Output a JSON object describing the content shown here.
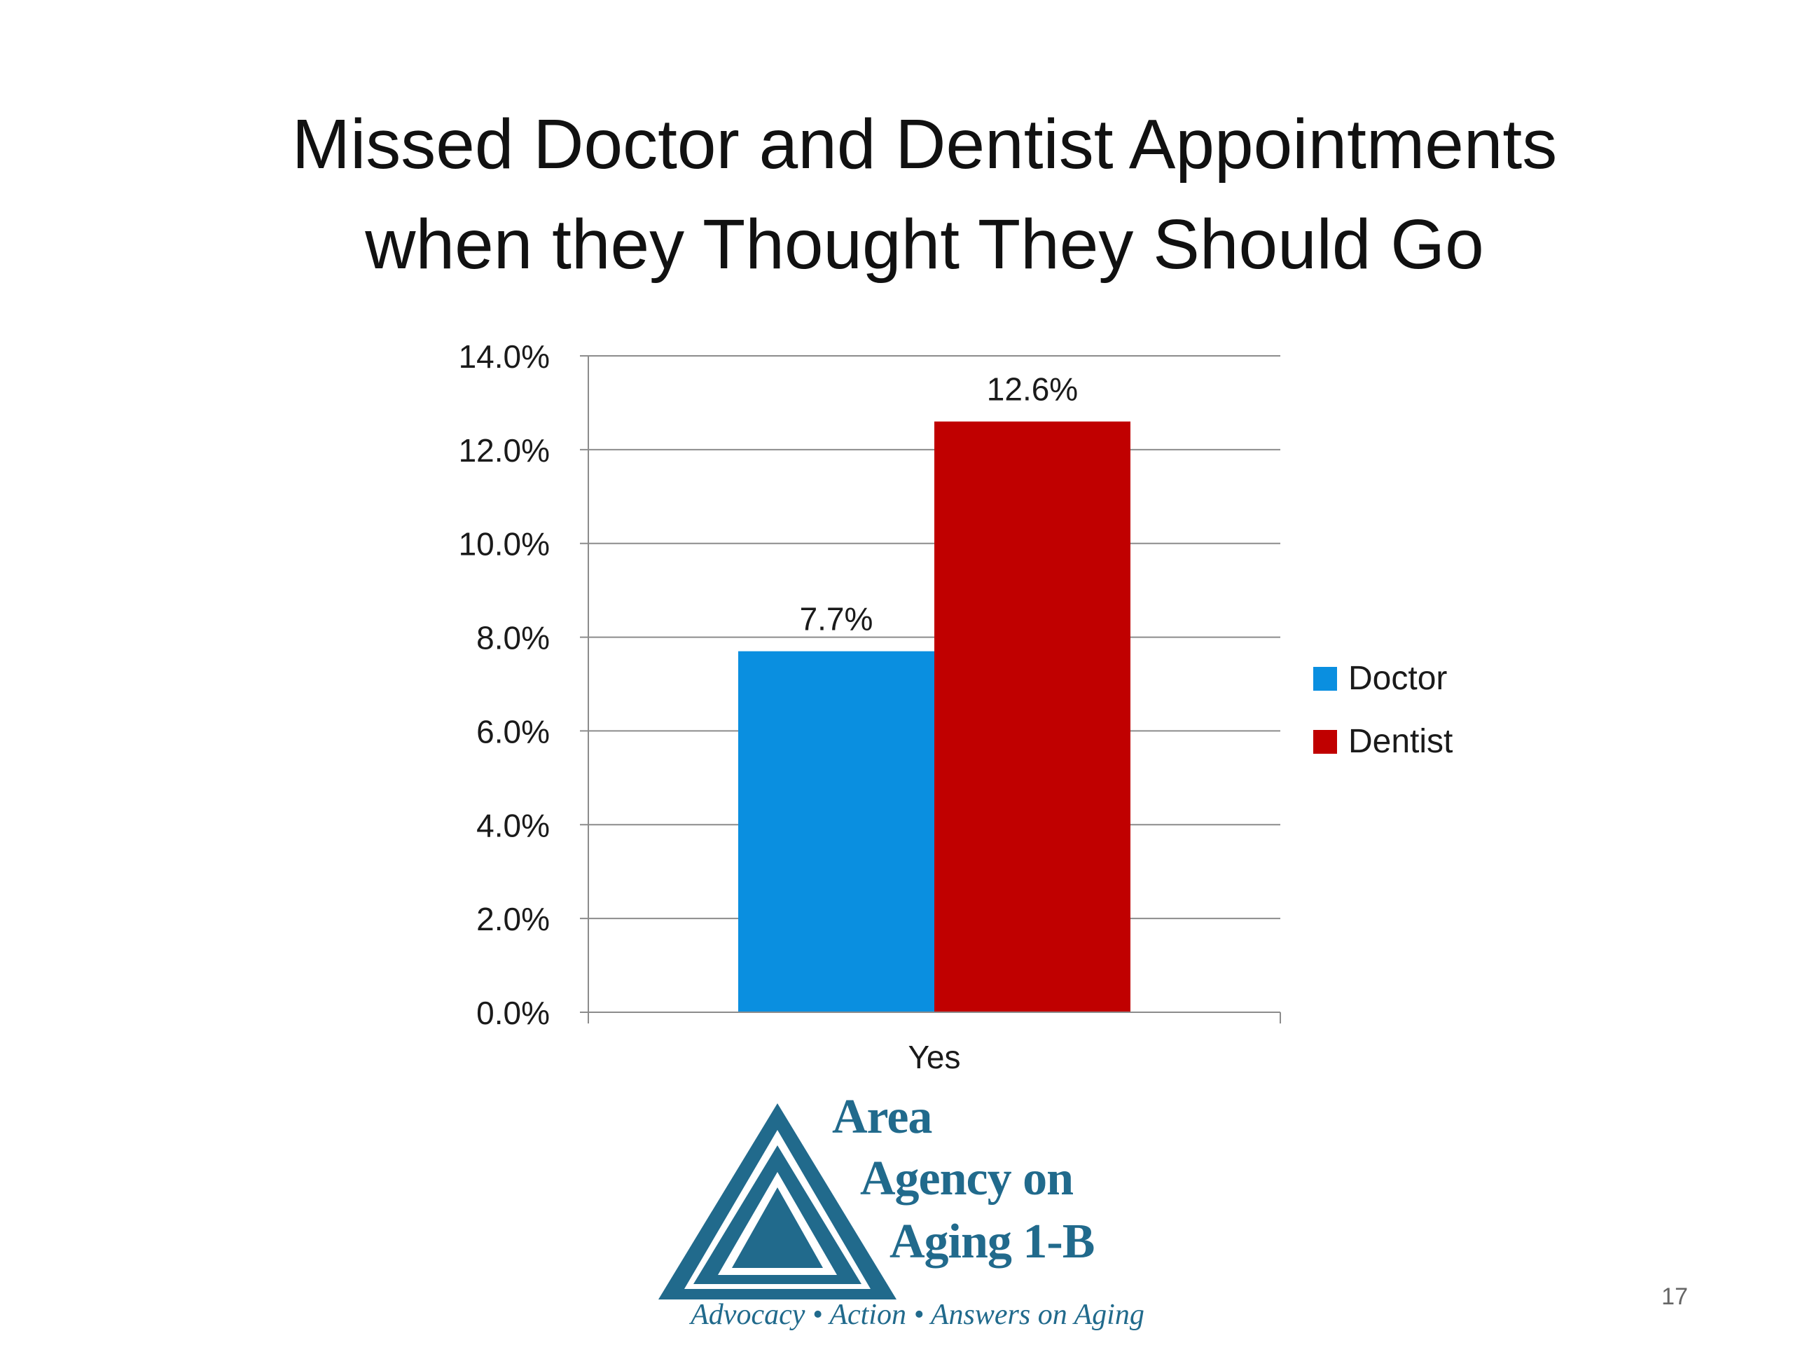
{
  "slide": {
    "title_line1": "Missed Doctor and Dentist Appointments",
    "title_line2": "when they Thought They Should Go",
    "page_number": "17"
  },
  "logo": {
    "line1": "Area",
    "line2": "Agency on",
    "line3": "Aging 1-B",
    "tagline": "Advocacy • Action • Answers on Aging",
    "color": "#216a8c"
  },
  "chart_data": {
    "type": "bar",
    "title": "",
    "xlabel": "",
    "ylabel": "",
    "categories": [
      "Yes"
    ],
    "series": [
      {
        "name": "Doctor",
        "values": [
          7.7
        ],
        "labels": [
          "7.7%"
        ],
        "color": "#0a8fe0"
      },
      {
        "name": "Dentist",
        "values": [
          12.6
        ],
        "labels": [
          "12.6%"
        ],
        "color": "#c00000"
      }
    ],
    "ylim": [
      0,
      14
    ],
    "yticks": [
      0,
      2,
      4,
      6,
      8,
      10,
      12,
      14
    ],
    "ytick_labels": [
      "0.0%",
      "2.0%",
      "4.0%",
      "6.0%",
      "8.0%",
      "10.0%",
      "12.0%",
      "14.0%"
    ],
    "grid": true,
    "legend": "right"
  }
}
